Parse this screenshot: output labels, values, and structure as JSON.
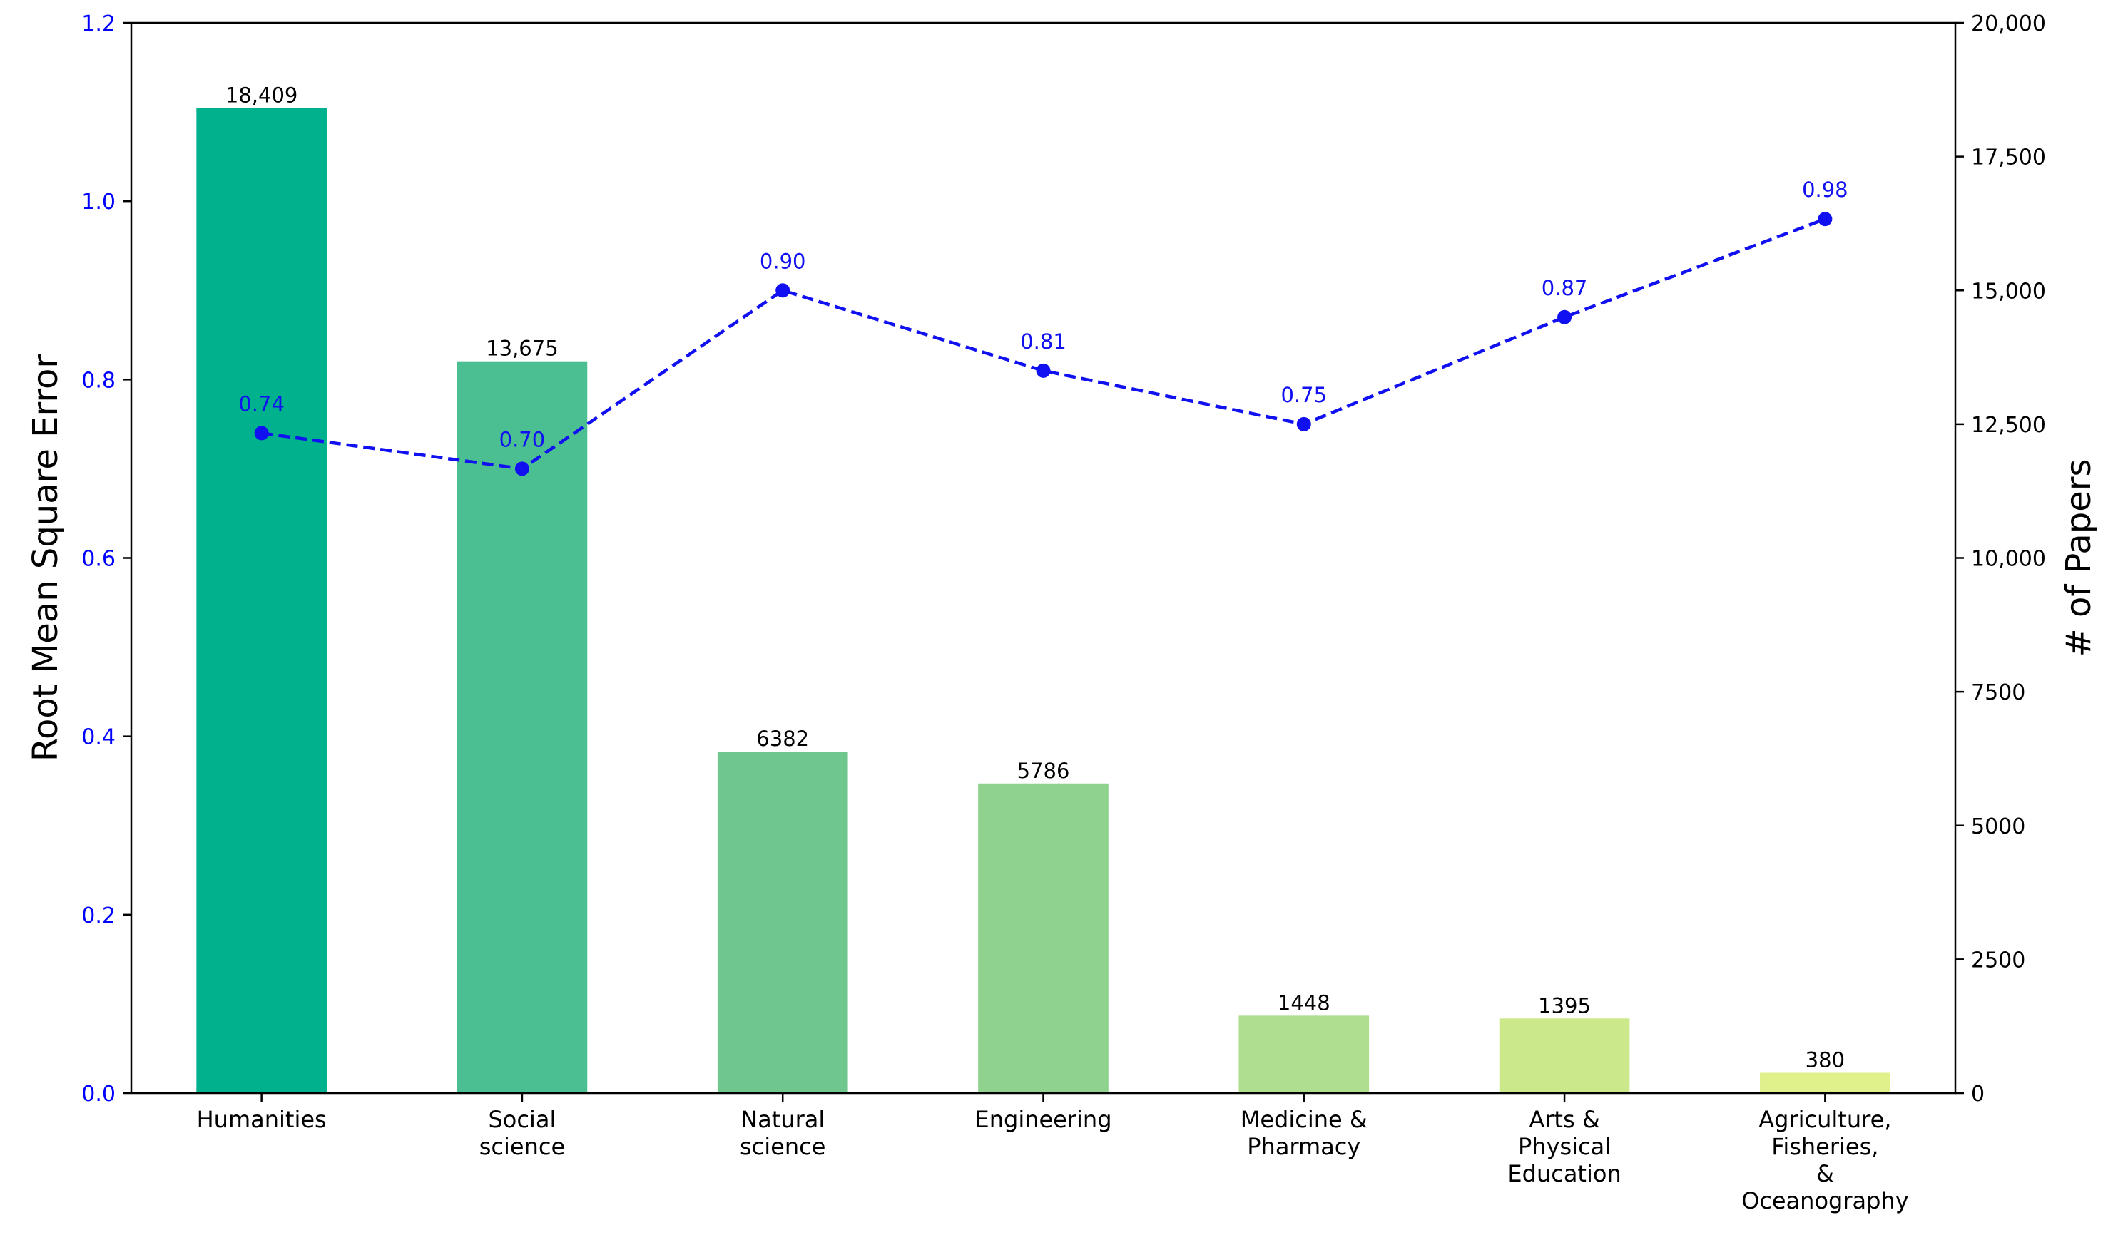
{
  "chart_data": {
    "type": "bar",
    "categories": [
      "Humanities",
      "Social\nscience",
      "Natural\nscience",
      "Engineering",
      "Medicine &\nPharmacy",
      "Arts &\nPhysical\nEducation",
      "Agriculture,\nFisheries,\n&\nOceanography"
    ],
    "series": [
      {
        "kind": "bar",
        "axis": "right",
        "values": [
          18409,
          13675,
          6382,
          5786,
          1448,
          1395,
          380
        ],
        "value_labels": [
          "18,409",
          "13,675",
          "6382",
          "5786",
          "1448",
          "1395",
          "380"
        ],
        "colors": [
          "#00b18e",
          "#4bbf92",
          "#6fc78d",
          "#8fd28e",
          "#b0de8f",
          "#cbe98b",
          "#e0f08a"
        ]
      },
      {
        "kind": "line",
        "axis": "left",
        "values": [
          0.74,
          0.7,
          0.9,
          0.81,
          0.75,
          0.87,
          0.98
        ],
        "value_labels": [
          "0.74",
          "0.70",
          "0.90",
          "0.81",
          "0.75",
          "0.87",
          "0.98"
        ],
        "color": "#1010f0",
        "line_style": "dashed",
        "marker": "circle"
      }
    ],
    "ylabel": "Root Mean Square Error",
    "y2label": "# of Papers",
    "ylim": [
      0,
      1.2
    ],
    "y2lim": [
      0,
      20000
    ],
    "yticks": [
      0.0,
      0.2,
      0.4,
      0.6,
      0.8,
      1.0,
      1.2
    ],
    "ytick_labels": [
      "0.0",
      "0.2",
      "0.4",
      "0.6",
      "0.8",
      "1.0",
      "1.2"
    ],
    "y2ticks": [
      0,
      2500,
      5000,
      7500,
      10000,
      12500,
      15000,
      17500,
      20000
    ],
    "y2tick_labels": [
      "0",
      "2500",
      "5000",
      "7500",
      "10,000",
      "12,500",
      "15,000",
      "17,500",
      "20,000"
    ],
    "left_axis_color": "#0000ff",
    "grid": false,
    "legend": "none"
  }
}
